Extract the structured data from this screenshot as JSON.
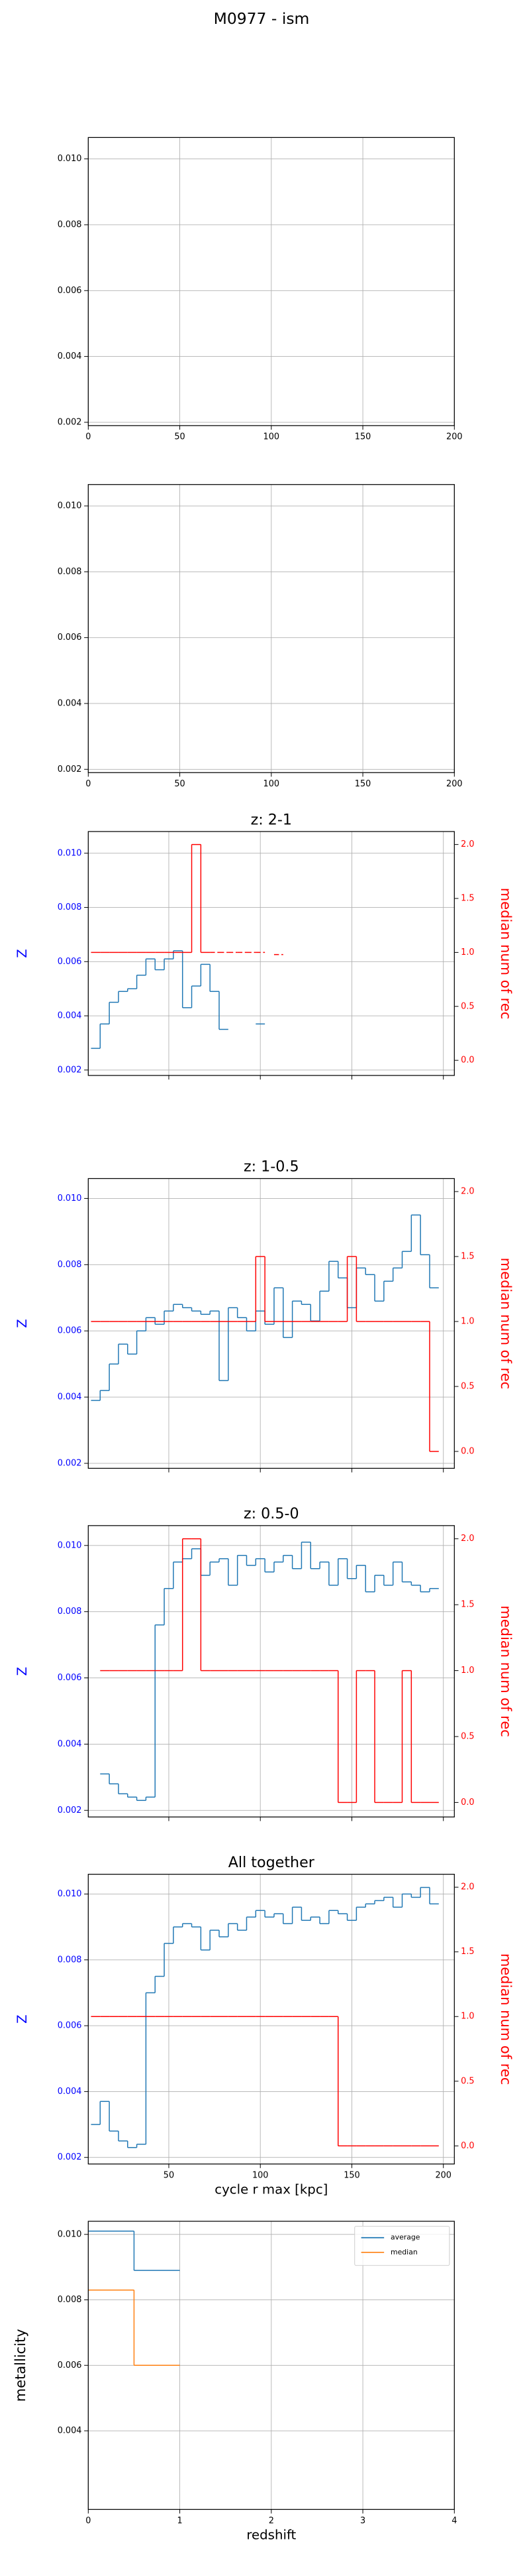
{
  "title": "M0977 - ism",
  "chart_data": [
    {
      "type": "line",
      "xlim": [
        0,
        200
      ],
      "ylim": [
        0.0019,
        0.01065
      ],
      "grid": true,
      "xticks": [
        0,
        50,
        100,
        150,
        200
      ],
      "yticks": [
        {
          "value": 0.002,
          "label": "0.002"
        },
        {
          "value": 0.004,
          "label": "0.004"
        },
        {
          "value": 0.006,
          "label": "0.006"
        },
        {
          "value": 0.008,
          "label": "0.008"
        },
        {
          "value": 0.01,
          "label": "0.010"
        }
      ],
      "series": []
    },
    {
      "type": "line",
      "xlim": [
        0,
        200
      ],
      "ylim": [
        0.0019,
        0.01065
      ],
      "grid": true,
      "xticks": [
        0,
        50,
        100,
        150,
        200
      ],
      "yticks": [
        {
          "value": 0.002,
          "label": "0.002"
        },
        {
          "value": 0.004,
          "label": "0.004"
        },
        {
          "value": 0.006,
          "label": "0.006"
        },
        {
          "value": 0.008,
          "label": "0.008"
        },
        {
          "value": 0.01,
          "label": "0.010"
        }
      ],
      "series": []
    },
    {
      "type": "line",
      "title": "z: 2-1",
      "ylabel": "Z",
      "y2label": "median num of rec",
      "ytick_color": "blue",
      "y2tick_color": "red",
      "ylabel_color": "blue",
      "y2label_color": "red",
      "drawstyle": "steps-mid",
      "xlim": [
        6,
        206
      ],
      "ylim": [
        0.0018,
        0.0108
      ],
      "y2lim": [
        -0.14,
        2.12
      ],
      "grid": true,
      "xticklabels": false,
      "xticks": [
        50,
        100,
        150,
        200
      ],
      "yticks": [
        {
          "value": 0.002,
          "label": "0.002"
        },
        {
          "value": 0.004,
          "label": "0.004"
        },
        {
          "value": 0.006,
          "label": "0.006"
        },
        {
          "value": 0.008,
          "label": "0.008"
        },
        {
          "value": 0.01,
          "label": "0.010"
        }
      ],
      "y2ticks": [
        {
          "value": 0,
          "label": "0.0"
        },
        0.5,
        {
          "value": 1,
          "label": "1.0"
        },
        1.5,
        {
          "value": 2,
          "label": "2.0"
        }
      ],
      "x": [
        10,
        15,
        20,
        25,
        30,
        35,
        40,
        45,
        50,
        55,
        60,
        65,
        70,
        75,
        80,
        85,
        90,
        95,
        100,
        105,
        110,
        115,
        120,
        125,
        130,
        135,
        140,
        145,
        150,
        155,
        160,
        165,
        170,
        175,
        180,
        185,
        190,
        195
      ],
      "series": [
        {
          "color": "#1f77b4",
          "values": [
            0.0028,
            0.0037,
            0.0045,
            0.0049,
            0.005,
            0.0055,
            0.0061,
            0.0057,
            0.0061,
            0.0064,
            0.0043,
            0.0051,
            0.0059,
            0.0049,
            0.0035,
            null,
            null,
            null,
            0.0037,
            null,
            null,
            null,
            null,
            null,
            null,
            null,
            null,
            null,
            null,
            null,
            null,
            null,
            null,
            null,
            null,
            null,
            null,
            null
          ]
        },
        {
          "color": "red",
          "axis": "y2",
          "values": [
            1,
            1,
            1,
            1,
            1,
            1,
            1,
            1,
            1,
            1,
            1,
            2,
            1,
            null,
            null,
            null,
            null,
            null,
            null,
            null,
            null,
            null,
            null,
            null,
            null,
            null,
            null,
            null,
            null,
            null,
            null,
            null,
            null,
            null,
            null,
            null,
            null,
            null
          ]
        },
        {
          "color": "red",
          "axis": "y2",
          "linestyle": "dashed",
          "values": [
            null,
            null,
            null,
            null,
            null,
            null,
            null,
            null,
            null,
            null,
            null,
            null,
            null,
            1,
            1,
            1,
            1,
            1,
            1,
            null,
            0.98,
            null,
            null,
            null,
            null,
            null,
            null,
            null,
            null,
            null,
            null,
            null,
            null,
            null,
            null,
            null,
            null,
            null
          ]
        }
      ]
    },
    {
      "type": "line",
      "title": "z: 1-0.5",
      "ylabel": "Z",
      "y2label": "median num of rec",
      "ytick_color": "blue",
      "y2tick_color": "red",
      "ylabel_color": "blue",
      "y2label_color": "red",
      "drawstyle": "steps-mid",
      "xlim": [
        6,
        206
      ],
      "ylim": [
        0.00185,
        0.0106
      ],
      "y2lim": [
        -0.13,
        2.1
      ],
      "grid": true,
      "xticklabels": false,
      "xticks": [
        50,
        100,
        150,
        200
      ],
      "yticks": [
        {
          "value": 0.002,
          "label": "0.002"
        },
        {
          "value": 0.004,
          "label": "0.004"
        },
        {
          "value": 0.006,
          "label": "0.006"
        },
        {
          "value": 0.008,
          "label": "0.008"
        },
        {
          "value": 0.01,
          "label": "0.010"
        }
      ],
      "y2ticks": [
        {
          "value": 0,
          "label": "0.0"
        },
        0.5,
        {
          "value": 1,
          "label": "1.0"
        },
        1.5,
        {
          "value": 2,
          "label": "2.0"
        }
      ],
      "x": [
        10,
        15,
        20,
        25,
        30,
        35,
        40,
        45,
        50,
        55,
        60,
        65,
        70,
        75,
        80,
        85,
        90,
        95,
        100,
        105,
        110,
        115,
        120,
        125,
        130,
        135,
        140,
        145,
        150,
        155,
        160,
        165,
        170,
        175,
        180,
        185,
        190,
        195
      ],
      "series": [
        {
          "color": "#1f77b4",
          "values": [
            0.0039,
            0.0042,
            0.005,
            0.0056,
            0.0053,
            0.006,
            0.0064,
            0.0062,
            0.0066,
            0.0068,
            0.0067,
            0.0066,
            0.0065,
            0.0066,
            0.0045,
            0.0067,
            0.0064,
            0.006,
            0.0066,
            0.0062,
            0.0073,
            0.0058,
            0.0069,
            0.0068,
            0.0063,
            0.0072,
            0.0081,
            0.0076,
            0.0067,
            0.0079,
            0.0077,
            0.0069,
            0.0075,
            0.0079,
            0.0084,
            0.0095,
            0.0083,
            0.0073
          ]
        },
        {
          "color": "red",
          "axis": "y2",
          "values": [
            1,
            1,
            1,
            1,
            1,
            1,
            1,
            1,
            1,
            1,
            1,
            1,
            1,
            1,
            1,
            1,
            1,
            1,
            1.5,
            1,
            1,
            1,
            1,
            1,
            1,
            1,
            1,
            1,
            1.5,
            1,
            1,
            1,
            1,
            1,
            1,
            1,
            1,
            0
          ]
        }
      ]
    },
    {
      "type": "line",
      "title": "z: 0.5-0",
      "ylabel": "Z",
      "y2label": "median num of rec",
      "ytick_color": "blue",
      "y2tick_color": "red",
      "ylabel_color": "blue",
      "y2label_color": "red",
      "drawstyle": "steps-mid",
      "xlim": [
        6,
        206
      ],
      "ylim": [
        0.0018,
        0.0106
      ],
      "y2lim": [
        -0.11,
        2.1
      ],
      "grid": true,
      "xticklabels": false,
      "xticks": [
        50,
        100,
        150,
        200
      ],
      "yticks": [
        {
          "value": 0.002,
          "label": "0.002"
        },
        {
          "value": 0.004,
          "label": "0.004"
        },
        {
          "value": 0.006,
          "label": "0.006"
        },
        {
          "value": 0.008,
          "label": "0.008"
        },
        {
          "value": 0.01,
          "label": "0.010"
        }
      ],
      "y2ticks": [
        {
          "value": 0,
          "label": "0.0"
        },
        0.5,
        {
          "value": 1,
          "label": "1.0"
        },
        1.5,
        {
          "value": 2,
          "label": "2.0"
        }
      ],
      "x": [
        10,
        15,
        20,
        25,
        30,
        35,
        40,
        45,
        50,
        55,
        60,
        65,
        70,
        75,
        80,
        85,
        90,
        95,
        100,
        105,
        110,
        115,
        120,
        125,
        130,
        135,
        140,
        145,
        150,
        155,
        160,
        165,
        170,
        175,
        180,
        185,
        190,
        195
      ],
      "series": [
        {
          "color": "#1f77b4",
          "values": [
            null,
            0.0031,
            0.0028,
            0.0025,
            0.0024,
            0.0023,
            0.0024,
            0.0076,
            0.0087,
            0.0095,
            0.0096,
            0.0099,
            0.0091,
            0.0095,
            0.0096,
            0.0088,
            0.0097,
            0.0094,
            0.0096,
            0.0092,
            0.0095,
            0.0097,
            0.0093,
            0.0101,
            0.0093,
            0.0095,
            0.0088,
            0.0096,
            0.009,
            0.0094,
            0.0086,
            0.0091,
            0.0088,
            0.0095,
            0.0089,
            0.0088,
            0.0086,
            0.0087
          ]
        },
        {
          "color": "red",
          "axis": "y2",
          "values": [
            null,
            1,
            1,
            1,
            1,
            1,
            1,
            1,
            1,
            1,
            2,
            2,
            1,
            1,
            1,
            1,
            1,
            1,
            1,
            1,
            1,
            1,
            1,
            1,
            1,
            1,
            1,
            0,
            0,
            1,
            1,
            0,
            0,
            0,
            1,
            0,
            0,
            0
          ]
        }
      ]
    },
    {
      "type": "line",
      "title": "All together",
      "ylabel": "Z",
      "y2label": "median num of rec",
      "xlabel": "cycle r max [kpc]",
      "ytick_color": "blue",
      "y2tick_color": "red",
      "ylabel_color": "blue",
      "y2label_color": "red",
      "drawstyle": "steps-mid",
      "xlim": [
        6,
        206
      ],
      "ylim": [
        0.0018,
        0.0106
      ],
      "y2lim": [
        -0.14,
        2.1
      ],
      "grid": true,
      "xticks": [
        50,
        100,
        150,
        200
      ],
      "yticks": [
        {
          "value": 0.002,
          "label": "0.002"
        },
        {
          "value": 0.004,
          "label": "0.004"
        },
        {
          "value": 0.006,
          "label": "0.006"
        },
        {
          "value": 0.008,
          "label": "0.008"
        },
        {
          "value": 0.01,
          "label": "0.010"
        }
      ],
      "y2ticks": [
        {
          "value": 0,
          "label": "0.0"
        },
        0.5,
        {
          "value": 1,
          "label": "1.0"
        },
        1.5,
        {
          "value": 2,
          "label": "2.0"
        }
      ],
      "x": [
        10,
        15,
        20,
        25,
        30,
        35,
        40,
        45,
        50,
        55,
        60,
        65,
        70,
        75,
        80,
        85,
        90,
        95,
        100,
        105,
        110,
        115,
        120,
        125,
        130,
        135,
        140,
        145,
        150,
        155,
        160,
        165,
        170,
        175,
        180,
        185,
        190,
        195
      ],
      "series": [
        {
          "color": "#1f77b4",
          "values": [
            0.003,
            0.0037,
            0.0028,
            0.0025,
            0.0023,
            0.0024,
            0.007,
            0.0075,
            0.0085,
            0.009,
            0.0091,
            0.009,
            0.0083,
            0.0089,
            0.0087,
            0.0091,
            0.0089,
            0.0093,
            0.0095,
            0.0093,
            0.0094,
            0.0091,
            0.0096,
            0.0092,
            0.0093,
            0.0091,
            0.0095,
            0.0094,
            0.0092,
            0.0096,
            0.0097,
            0.0098,
            0.0099,
            0.0096,
            0.01,
            0.0099,
            0.0102,
            0.0097
          ]
        },
        {
          "color": "red",
          "axis": "y2",
          "values": [
            1,
            1,
            1,
            1,
            1,
            1,
            1,
            1,
            1,
            1,
            1,
            1,
            1,
            1,
            1,
            1,
            1,
            1,
            1,
            1,
            1,
            1,
            1,
            1,
            1,
            1,
            1,
            0,
            0,
            0,
            0,
            0,
            0,
            0,
            0,
            0,
            0,
            0
          ]
        }
      ]
    },
    {
      "type": "line",
      "ylabel": "metallicity",
      "xlabel": "redshift",
      "drawstyle": "steps-post",
      "legend": "upper right",
      "xlim": [
        0,
        4
      ],
      "ylim": [
        0.0016,
        0.0104
      ],
      "grid": true,
      "xticks": [
        0,
        1,
        2,
        3,
        4
      ],
      "yticks": [
        {
          "value": 0.004,
          "label": "0.004"
        },
        {
          "value": 0.006,
          "label": "0.006"
        },
        {
          "value": 0.008,
          "label": "0.008"
        },
        {
          "value": 0.01,
          "label": "0.010"
        }
      ],
      "x": [
        0,
        0.5,
        1
      ],
      "series": [
        {
          "name": "average",
          "color": "#1f77b4",
          "values": [
            0.0101,
            0.0089,
            0.0089
          ]
        },
        {
          "name": "median",
          "color": "#ff7f0e",
          "values": [
            0.0083,
            0.006,
            0.006
          ]
        }
      ]
    }
  ]
}
